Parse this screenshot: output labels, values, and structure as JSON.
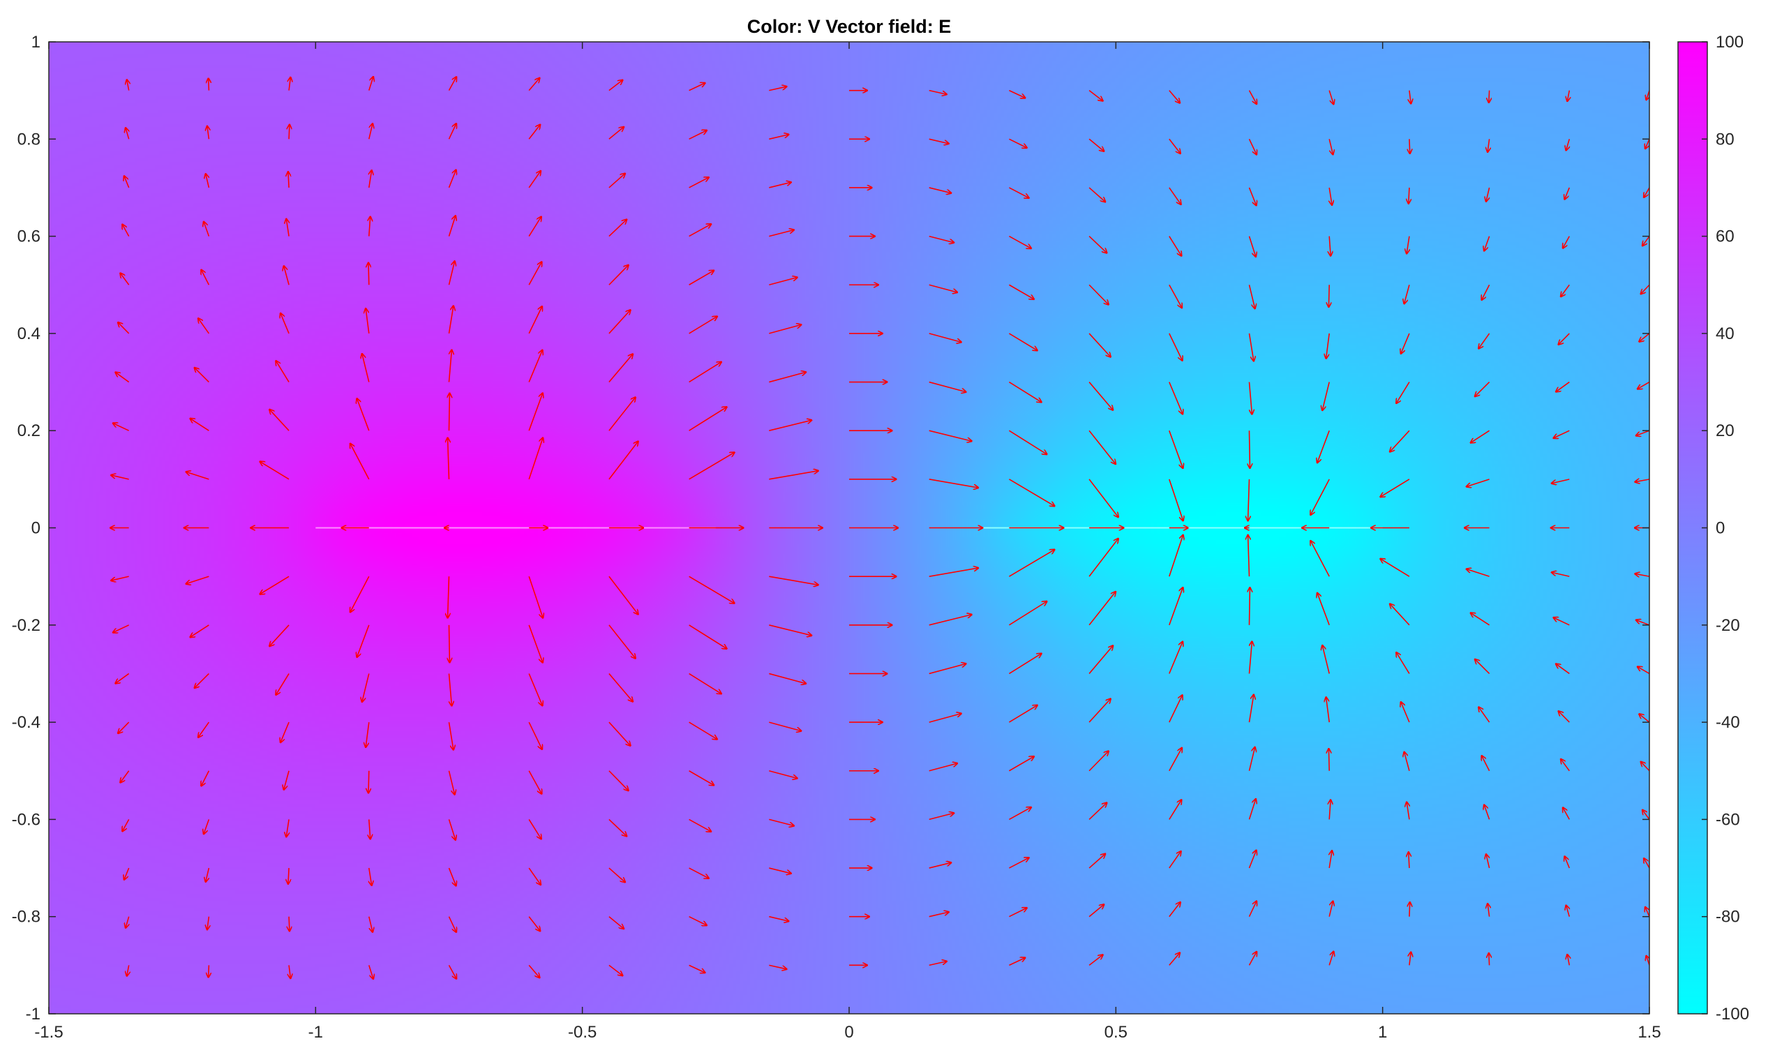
{
  "chart_data": {
    "type": "heatmap",
    "title": "Color: V  Vector field: E",
    "x_ticks": [
      "-1.5",
      "-1",
      "-0.5",
      "0",
      "0.5",
      "1",
      "1.5"
    ],
    "x_tick_values": [
      -1.5,
      -1,
      -0.5,
      0,
      0.5,
      1,
      1.5
    ],
    "y_ticks": [
      "1",
      "0.8",
      "0.6",
      "0.4",
      "0.2",
      "0",
      "-0.2",
      "-0.4",
      "-0.6",
      "-0.8",
      "-1"
    ],
    "y_tick_values": [
      1,
      0.8,
      0.6,
      0.4,
      0.2,
      0,
      -0.2,
      -0.4,
      -0.6,
      -0.8,
      -1
    ],
    "xlim": [
      -1.5,
      1.5
    ],
    "ylim": [
      -1,
      1
    ],
    "colorbar": {
      "ticks": [
        "100",
        "80",
        "60",
        "40",
        "20",
        "0",
        "-20",
        "-40",
        "-60",
        "-80",
        "-100"
      ],
      "tick_values": [
        100,
        80,
        60,
        40,
        20,
        0,
        -20,
        -40,
        -60,
        -80,
        -100
      ],
      "range": [
        -100,
        100
      ],
      "colormap": "cool",
      "color_low": "#00ffff",
      "color_high": "#ff00ff"
    },
    "electrodes": [
      {
        "x_start": -1.0,
        "x_end": -0.25,
        "y": 0,
        "potential": 100
      },
      {
        "x_start": 0.25,
        "x_end": 1.0,
        "y": 0,
        "potential": -100
      }
    ],
    "vector_field": {
      "quantity": "E",
      "color": "#ff0000",
      "x_start": -1.35,
      "x_step": 0.15,
      "x_count": 20,
      "y_start": -0.9,
      "y_step": 0.1,
      "y_count": 19
    },
    "grid": false
  }
}
